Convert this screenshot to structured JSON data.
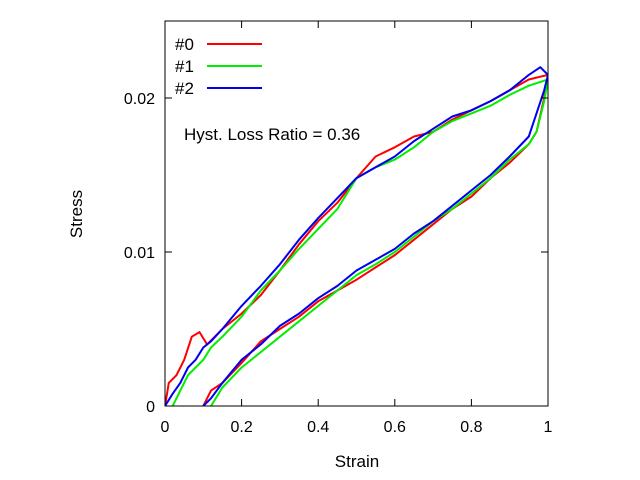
{
  "chart_data": {
    "type": "line",
    "xlabel": "Strain",
    "ylabel": "Stress",
    "xlim": [
      0,
      1
    ],
    "ylim": [
      0,
      0.025
    ],
    "x_ticks": [
      {
        "value": 0,
        "label": "0"
      },
      {
        "value": 0.2,
        "label": "0.2"
      },
      {
        "value": 0.4,
        "label": "0.4"
      },
      {
        "value": 0.6,
        "label": "0.6"
      },
      {
        "value": 0.8,
        "label": "0.8"
      },
      {
        "value": 1,
        "label": "1"
      }
    ],
    "y_ticks": [
      {
        "value": 0,
        "label": "0"
      },
      {
        "value": 0.01,
        "label": "0.01"
      },
      {
        "value": 0.02,
        "label": "0.02"
      }
    ],
    "grid": false,
    "legend_position": "top-left",
    "annotation": "Hyst. Loss Ratio = 0.36",
    "series": [
      {
        "name": "#0",
        "color": "#ff0000",
        "points": [
          [
            0,
            0
          ],
          [
            0.01,
            0.0015
          ],
          [
            0.03,
            0.002
          ],
          [
            0.05,
            0.003
          ],
          [
            0.07,
            0.0045
          ],
          [
            0.09,
            0.0048
          ],
          [
            0.11,
            0.004
          ],
          [
            0.13,
            0.0045
          ],
          [
            0.15,
            0.005
          ],
          [
            0.2,
            0.006
          ],
          [
            0.25,
            0.0072
          ],
          [
            0.3,
            0.0088
          ],
          [
            0.35,
            0.0105
          ],
          [
            0.4,
            0.012
          ],
          [
            0.45,
            0.0132
          ],
          [
            0.5,
            0.0148
          ],
          [
            0.55,
            0.0162
          ],
          [
            0.6,
            0.0168
          ],
          [
            0.65,
            0.0175
          ],
          [
            0.7,
            0.0178
          ],
          [
            0.75,
            0.0186
          ],
          [
            0.8,
            0.0192
          ],
          [
            0.85,
            0.0198
          ],
          [
            0.9,
            0.0205
          ],
          [
            0.95,
            0.0212
          ],
          [
            1,
            0.0215
          ],
          [
            0.99,
            0.02
          ],
          [
            0.97,
            0.0178
          ],
          [
            0.95,
            0.017
          ],
          [
            0.9,
            0.0158
          ],
          [
            0.85,
            0.0148
          ],
          [
            0.8,
            0.0136
          ],
          [
            0.75,
            0.0128
          ],
          [
            0.7,
            0.0118
          ],
          [
            0.65,
            0.0108
          ],
          [
            0.6,
            0.0098
          ],
          [
            0.55,
            0.009
          ],
          [
            0.5,
            0.0082
          ],
          [
            0.45,
            0.0075
          ],
          [
            0.4,
            0.0068
          ],
          [
            0.35,
            0.0058
          ],
          [
            0.3,
            0.005
          ],
          [
            0.25,
            0.0042
          ],
          [
            0.2,
            0.0028
          ],
          [
            0.15,
            0.0015
          ],
          [
            0.12,
            0.001
          ],
          [
            0.1,
            0
          ]
        ]
      },
      {
        "name": "#1",
        "color": "#00ee00",
        "points": [
          [
            0.02,
            0
          ],
          [
            0.04,
            0.001
          ],
          [
            0.06,
            0.002
          ],
          [
            0.08,
            0.0025
          ],
          [
            0.1,
            0.003
          ],
          [
            0.12,
            0.0038
          ],
          [
            0.15,
            0.0045
          ],
          [
            0.2,
            0.0058
          ],
          [
            0.25,
            0.0075
          ],
          [
            0.3,
            0.0088
          ],
          [
            0.35,
            0.0102
          ],
          [
            0.4,
            0.0115
          ],
          [
            0.45,
            0.0128
          ],
          [
            0.5,
            0.0148
          ],
          [
            0.55,
            0.0155
          ],
          [
            0.6,
            0.016
          ],
          [
            0.65,
            0.0168
          ],
          [
            0.7,
            0.0178
          ],
          [
            0.75,
            0.0185
          ],
          [
            0.8,
            0.019
          ],
          [
            0.85,
            0.0195
          ],
          [
            0.9,
            0.0202
          ],
          [
            0.95,
            0.0208
          ],
          [
            1,
            0.0212
          ],
          [
            0.99,
            0.0198
          ],
          [
            0.97,
            0.0178
          ],
          [
            0.95,
            0.017
          ],
          [
            0.9,
            0.016
          ],
          [
            0.85,
            0.0148
          ],
          [
            0.8,
            0.0138
          ],
          [
            0.75,
            0.0128
          ],
          [
            0.7,
            0.012
          ],
          [
            0.65,
            0.011
          ],
          [
            0.6,
            0.01
          ],
          [
            0.55,
            0.0092
          ],
          [
            0.5,
            0.0085
          ],
          [
            0.45,
            0.0075
          ],
          [
            0.4,
            0.0065
          ],
          [
            0.35,
            0.0055
          ],
          [
            0.3,
            0.0045
          ],
          [
            0.25,
            0.0035
          ],
          [
            0.2,
            0.0025
          ],
          [
            0.15,
            0.0012
          ],
          [
            0.12,
            0
          ]
        ]
      },
      {
        "name": "#2",
        "color": "#0000ee",
        "points": [
          [
            0,
            0
          ],
          [
            0.02,
            0.0008
          ],
          [
            0.04,
            0.0015
          ],
          [
            0.06,
            0.0025
          ],
          [
            0.08,
            0.003
          ],
          [
            0.1,
            0.0038
          ],
          [
            0.12,
            0.0042
          ],
          [
            0.15,
            0.005
          ],
          [
            0.2,
            0.0065
          ],
          [
            0.25,
            0.0078
          ],
          [
            0.3,
            0.0092
          ],
          [
            0.35,
            0.0108
          ],
          [
            0.4,
            0.0122
          ],
          [
            0.45,
            0.0135
          ],
          [
            0.5,
            0.0148
          ],
          [
            0.55,
            0.0155
          ],
          [
            0.6,
            0.0162
          ],
          [
            0.65,
            0.0172
          ],
          [
            0.7,
            0.018
          ],
          [
            0.75,
            0.0188
          ],
          [
            0.8,
            0.0192
          ],
          [
            0.85,
            0.0198
          ],
          [
            0.9,
            0.0205
          ],
          [
            0.95,
            0.0215
          ],
          [
            0.98,
            0.022
          ],
          [
            1,
            0.0215
          ],
          [
            0.99,
            0.0205
          ],
          [
            0.97,
            0.019
          ],
          [
            0.95,
            0.0175
          ],
          [
            0.9,
            0.0162
          ],
          [
            0.85,
            0.015
          ],
          [
            0.8,
            0.014
          ],
          [
            0.75,
            0.013
          ],
          [
            0.7,
            0.012
          ],
          [
            0.65,
            0.0112
          ],
          [
            0.6,
            0.0102
          ],
          [
            0.55,
            0.0095
          ],
          [
            0.5,
            0.0088
          ],
          [
            0.45,
            0.0078
          ],
          [
            0.4,
            0.007
          ],
          [
            0.35,
            0.006
          ],
          [
            0.3,
            0.0052
          ],
          [
            0.25,
            0.004
          ],
          [
            0.2,
            0.003
          ],
          [
            0.15,
            0.0015
          ],
          [
            0.12,
            0.0005
          ],
          [
            0.1,
            0
          ]
        ]
      }
    ]
  }
}
